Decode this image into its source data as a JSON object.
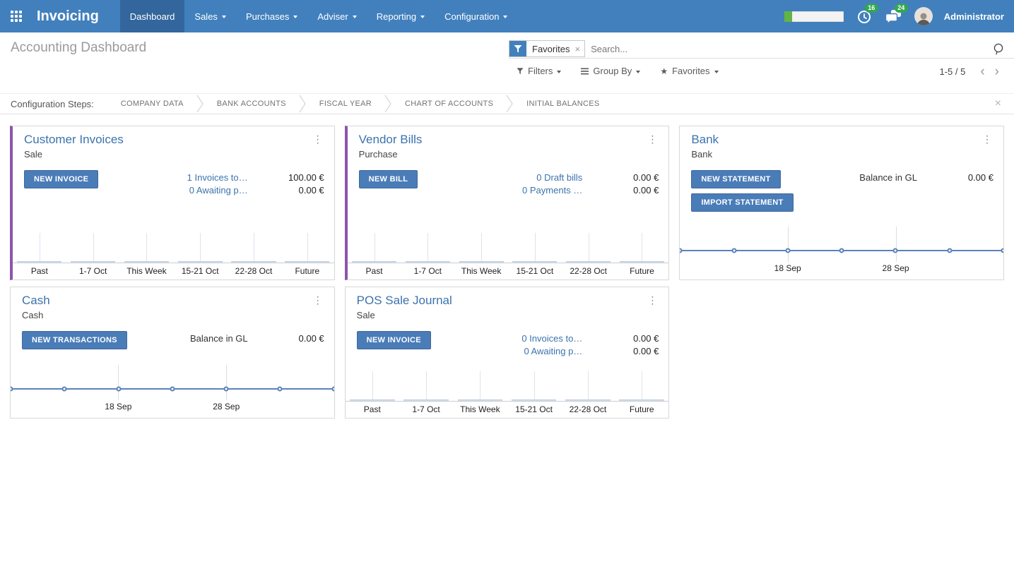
{
  "colors": {
    "navbar_bg": "#4180bd",
    "navbar_active_bg": "#33669c",
    "accent_purple": "#8a56ab",
    "button_blue": "#4a7cb8",
    "link_blue": "#3b73ad",
    "badge_green": "#33a653",
    "progress_green": "#62b544",
    "sparkline_blue": "#5b82b8",
    "page_title_grey": "#9a9a9a"
  },
  "icons": {
    "kebab": "⋮",
    "close": "×",
    "facet_remove": "×",
    "star": "★",
    "pager_prev": "‹",
    "pager_next": "›"
  },
  "navbar": {
    "brand": "Invoicing",
    "menu": [
      {
        "label": "Dashboard"
      },
      {
        "label": "Sales"
      },
      {
        "label": "Purchases"
      },
      {
        "label": "Adviser"
      },
      {
        "label": "Reporting"
      },
      {
        "label": "Configuration"
      }
    ],
    "progress_fill_pct": 13,
    "timer_badge": "16",
    "messages_badge": "24",
    "user_name": "Administrator"
  },
  "control_panel": {
    "page_title": "Accounting Dashboard",
    "search": {
      "facet_label": "Favorites",
      "placeholder": "Search..."
    },
    "filters_label": "Filters",
    "group_by_label": "Group By",
    "favorites_label": "Favorites",
    "pager": {
      "text": "1-5 / 5"
    }
  },
  "config_steps": {
    "label": "Configuration Steps:",
    "steps": [
      "COMPANY DATA",
      "BANK ACCOUNTS",
      "FISCAL YEAR",
      "CHART OF ACCOUNTS",
      "INITIAL BALANCES"
    ]
  },
  "cards": [
    {
      "title": "Customer Invoices",
      "subtitle": "Sale",
      "buttons": [
        "NEW INVOICE"
      ],
      "rows": [
        {
          "link": "1 Invoices to…",
          "amount": "100.00 €"
        },
        {
          "link": "0 Awaiting p…",
          "amount": "0.00 €"
        }
      ]
    },
    {
      "title": "Vendor Bills",
      "subtitle": "Purchase",
      "buttons": [
        "NEW BILL"
      ],
      "rows": [
        {
          "link": "0 Draft bills",
          "amount": "0.00 €"
        },
        {
          "link": "0 Payments …",
          "amount": "0.00 €"
        }
      ]
    },
    {
      "title": "Bank",
      "subtitle": "Bank",
      "buttons": [
        "NEW STATEMENT",
        "IMPORT STATEMENT"
      ],
      "rows": [
        {
          "label": "Balance in GL",
          "amount": "0.00 €"
        }
      ]
    },
    {
      "title": "Cash",
      "subtitle": "Cash",
      "buttons": [
        "NEW TRANSACTIONS"
      ],
      "rows": [
        {
          "label": "Balance in GL",
          "amount": "0.00 €"
        }
      ]
    },
    {
      "title": "POS Sale Journal",
      "subtitle": "Sale",
      "buttons": [
        "NEW INVOICE"
      ],
      "rows": [
        {
          "link": "0 Invoices to…",
          "amount": "0.00 €"
        },
        {
          "link": "0 Awaiting p…",
          "amount": "0.00 €"
        }
      ]
    }
  ],
  "chart_data": [
    {
      "type": "bar",
      "title": "Customer Invoices",
      "categories": [
        "Past",
        "1-7 Oct",
        "This Week",
        "15-21 Oct",
        "22-28 Oct",
        "Future"
      ],
      "values": [
        0,
        0,
        0,
        0,
        0,
        0
      ],
      "ylim": [
        0,
        1
      ],
      "grid": false,
      "legend": false
    },
    {
      "type": "bar",
      "title": "Vendor Bills",
      "categories": [
        "Past",
        "1-7 Oct",
        "This Week",
        "15-21 Oct",
        "22-28 Oct",
        "Future"
      ],
      "values": [
        0,
        0,
        0,
        0,
        0,
        0
      ],
      "ylim": [
        0,
        1
      ],
      "grid": false,
      "legend": false
    },
    {
      "type": "line",
      "title": "Bank",
      "x_labels": [
        "18 Sep",
        "28 Sep"
      ],
      "label_positions": [
        0.333,
        0.667
      ],
      "values": [
        0,
        0,
        0,
        0,
        0,
        0,
        0
      ],
      "grid": true,
      "legend": false
    },
    {
      "type": "line",
      "title": "Cash",
      "x_labels": [
        "18 Sep",
        "28 Sep"
      ],
      "label_positions": [
        0.333,
        0.667
      ],
      "values": [
        0,
        0,
        0,
        0,
        0,
        0,
        0
      ],
      "grid": true,
      "legend": false
    },
    {
      "type": "bar",
      "title": "POS Sale Journal",
      "categories": [
        "Past",
        "1-7 Oct",
        "This Week",
        "15-21 Oct",
        "22-28 Oct",
        "Future"
      ],
      "values": [
        0,
        0,
        0,
        0,
        0,
        0
      ],
      "ylim": [
        0,
        1
      ],
      "grid": false,
      "legend": false
    }
  ]
}
